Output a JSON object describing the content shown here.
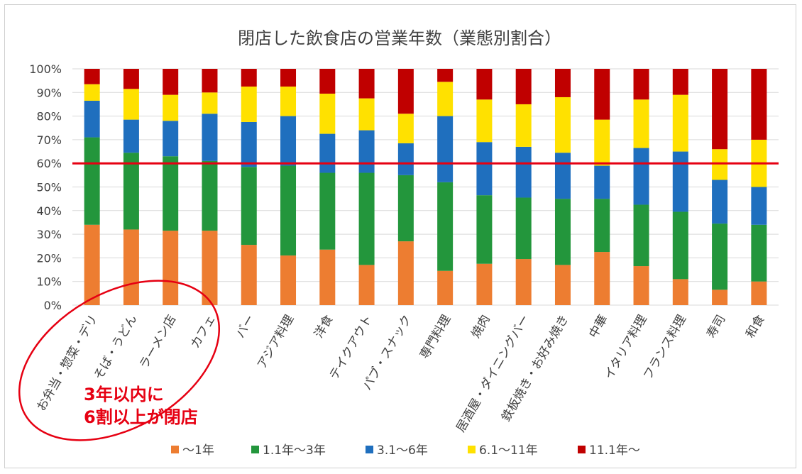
{
  "chart_data": {
    "type": "bar",
    "stacked": true,
    "percent": true,
    "title": "閉店した飲食店の営業年数（業態別割合）",
    "ylim": [
      0,
      100
    ],
    "y_ticks": [
      "0%",
      "10%",
      "20%",
      "30%",
      "40%",
      "50%",
      "60%",
      "70%",
      "80%",
      "90%",
      "100%"
    ],
    "grid": true,
    "legend_position": "bottom",
    "categories": [
      "お弁当・惣菜・デリ",
      "そば・うどん",
      "ラーメン店",
      "カフェ",
      "バー",
      "アジア料理",
      "洋食",
      "テイクアウト",
      "パブ・スナック",
      "専門料理",
      "焼肉",
      "居酒屋・ダイニングバー",
      "鉄板焼き・お好み焼き",
      "中華",
      "イタリア料理",
      "フランス料理",
      "寿司",
      "和食"
    ],
    "series": [
      {
        "name": "〜1年",
        "color": "#ed7d31",
        "values": [
          34,
          32,
          31.5,
          31.5,
          25.5,
          21,
          23.5,
          17,
          27,
          14.5,
          17.5,
          19.5,
          17,
          22.5,
          16.5,
          11,
          6.5,
          10
        ]
      },
      {
        "name": "1.1年〜3年",
        "color": "#23963c",
        "values": [
          37,
          32.5,
          31.5,
          29.5,
          33,
          38,
          32.5,
          39,
          28,
          37.5,
          29,
          26,
          28,
          22.5,
          26,
          28.5,
          28,
          24
        ]
      },
      {
        "name": "3.1〜6年",
        "color": "#1f6fbe",
        "values": [
          15.5,
          14,
          15,
          20,
          19,
          21,
          16.5,
          18,
          13.5,
          28,
          22.5,
          21.5,
          19.5,
          14,
          24,
          25.5,
          18.5,
          16
        ]
      },
      {
        "name": "6.1〜11年",
        "color": "#ffe100",
        "values": [
          7,
          13,
          11,
          9,
          15,
          12.5,
          17,
          13.5,
          12.5,
          14.5,
          18,
          18,
          23.5,
          19.5,
          20.5,
          24,
          13,
          20
        ]
      },
      {
        "name": "11.1年〜",
        "color": "#c00000",
        "values": [
          6.5,
          8.5,
          11,
          10,
          7.5,
          7.5,
          10.5,
          12.5,
          19,
          5.5,
          13,
          15,
          12,
          21.5,
          13,
          11,
          34,
          30
        ]
      }
    ],
    "reference_line": {
      "value": 60,
      "color": "#e60012"
    },
    "callout": {
      "lines": [
        "3年以内に",
        "6割以上が閉店"
      ],
      "color": "#e60012"
    }
  }
}
